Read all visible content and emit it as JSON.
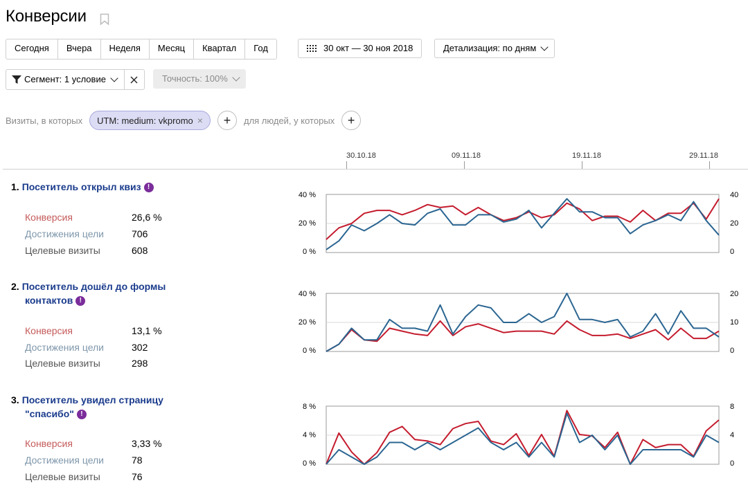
{
  "page": {
    "title": "Конверсии"
  },
  "periods": [
    "Сегодня",
    "Вчера",
    "Неделя",
    "Месяц",
    "Квартал",
    "Год"
  ],
  "date_range": "30 окт — 30 ноя 2018",
  "detail": "Детализация: по дням",
  "segment": "Сегмент: 1 условие",
  "accuracy": "Точность: 100%",
  "filter": {
    "visits_label": "Визиты, в которых",
    "pill": "UTM: medium: vkpromo",
    "people_label": "для людей, у которых"
  },
  "dates": [
    "30.10.18",
    "09.11.18",
    "19.11.18",
    "29.11.18"
  ],
  "colors": {
    "conversion": "#c41b2d",
    "achievements": "#2a6591",
    "accent": "#7b2d9b"
  },
  "metric_labels": {
    "conv": "Конверсия",
    "ach": "Достижения цели",
    "vis": "Целевые визиты"
  },
  "goals": [
    {
      "num": "1.",
      "title_lines": [
        "Посетитель открыл квиз"
      ],
      "conversion": "26,6 %",
      "achievements": "706",
      "visits": "608",
      "left_ticks": [
        "40 %",
        "20 %",
        "0 %"
      ],
      "right_ticks": [
        "40",
        "20",
        "0"
      ]
    },
    {
      "num": "2.",
      "title_lines": [
        "Посетитель дошёл до формы",
        "контактов"
      ],
      "conversion": "13,1 %",
      "achievements": "302",
      "visits": "298",
      "left_ticks": [
        "40 %",
        "20 %",
        "0 %"
      ],
      "right_ticks": [
        "20",
        "10",
        "0"
      ]
    },
    {
      "num": "3.",
      "title_lines": [
        "Посетитель увидел страницу",
        "\"спасибо\""
      ],
      "conversion": "3,33 %",
      "achievements": "78",
      "visits": "76",
      "left_ticks": [
        "8 %",
        "4 %",
        "0 %"
      ],
      "right_ticks": [
        "8",
        "4",
        "0"
      ]
    }
  ],
  "chart_data": [
    {
      "type": "line",
      "x": [
        "30.10",
        "31.10",
        "01.11",
        "02.11",
        "03.11",
        "04.11",
        "05.11",
        "06.11",
        "07.11",
        "08.11",
        "09.11",
        "10.11",
        "11.11",
        "12.11",
        "13.11",
        "14.11",
        "15.11",
        "16.11",
        "17.11",
        "18.11",
        "19.11",
        "20.11",
        "21.11",
        "22.11",
        "23.11",
        "24.11",
        "25.11",
        "26.11",
        "27.11",
        "28.11",
        "29.11",
        "30.11"
      ],
      "ylim_left": [
        0,
        40
      ],
      "ylim_right": [
        0,
        40
      ],
      "series": [
        {
          "color": "#c41b2d",
          "axis": "left",
          "values": [
            9,
            17,
            20,
            27,
            29,
            29,
            26,
            29,
            33,
            31,
            32,
            26,
            31,
            26,
            22,
            24,
            28,
            24,
            26,
            34,
            30,
            22,
            25,
            25,
            21,
            29,
            22,
            27,
            27,
            34,
            23,
            37
          ]
        },
        {
          "color": "#2a6591",
          "axis": "right",
          "values": [
            2,
            8,
            19,
            15,
            20,
            26,
            20,
            19,
            27,
            30,
            19,
            19,
            26,
            26,
            21,
            23,
            29,
            17,
            27,
            37,
            28,
            28,
            24,
            24,
            13,
            19,
            22,
            26,
            22,
            35,
            22,
            12
          ]
        }
      ]
    },
    {
      "type": "line",
      "x": [
        "30.10",
        "31.10",
        "01.11",
        "02.11",
        "03.11",
        "04.11",
        "05.11",
        "06.11",
        "07.11",
        "08.11",
        "09.11",
        "10.11",
        "11.11",
        "12.11",
        "13.11",
        "14.11",
        "15.11",
        "16.11",
        "17.11",
        "18.11",
        "19.11",
        "20.11",
        "21.11",
        "22.11",
        "23.11",
        "24.11",
        "25.11",
        "26.11",
        "27.11",
        "28.11",
        "29.11",
        "30.11"
      ],
      "ylim_left": [
        0,
        40
      ],
      "ylim_right": [
        0,
        20
      ],
      "series": [
        {
          "color": "#c41b2d",
          "axis": "left",
          "values": [
            0,
            5,
            15,
            8,
            7,
            16,
            14,
            12,
            11,
            21,
            11,
            17,
            19,
            16,
            13,
            14,
            14,
            14,
            12,
            21,
            15,
            11,
            11,
            12,
            9,
            12,
            15,
            8,
            16,
            9,
            9,
            14
          ]
        },
        {
          "color": "#2a6591",
          "axis": "right",
          "values": [
            0,
            2.5,
            8,
            4,
            4,
            11,
            8,
            8,
            7,
            16,
            6,
            12,
            16,
            15,
            10,
            10,
            13,
            10,
            12,
            20,
            11,
            11,
            10,
            11,
            5,
            7,
            13,
            6,
            14,
            8,
            8,
            5
          ]
        }
      ]
    },
    {
      "type": "line",
      "x": [
        "30.10",
        "31.10",
        "01.11",
        "02.11",
        "03.11",
        "04.11",
        "05.11",
        "06.11",
        "07.11",
        "08.11",
        "09.11",
        "10.11",
        "11.11",
        "12.11",
        "13.11",
        "14.11",
        "15.11",
        "16.11",
        "17.11",
        "18.11",
        "19.11",
        "20.11",
        "21.11",
        "22.11",
        "23.11",
        "24.11",
        "25.11",
        "26.11",
        "27.11",
        "28.11",
        "29.11",
        "30.11"
      ],
      "ylim_left": [
        0,
        8
      ],
      "ylim_right": [
        0,
        8
      ],
      "series": [
        {
          "color": "#c41b2d",
          "axis": "left",
          "values": [
            0,
            4.3,
            1.7,
            0,
            1.6,
            4.4,
            5.2,
            3.4,
            3.2,
            2.7,
            4.9,
            5.6,
            5.9,
            3.2,
            2.7,
            4.2,
            1.2,
            4.1,
            1.1,
            7.4,
            4.1,
            3.9,
            2.3,
            4.4,
            0,
            3.4,
            2.3,
            2.7,
            2.7,
            1.1,
            4.6,
            6.1
          ]
        },
        {
          "color": "#2a6591",
          "axis": "right",
          "values": [
            0,
            2,
            1,
            0,
            1,
            3,
            3,
            2,
            3,
            2,
            3,
            4,
            5,
            3,
            2,
            3,
            1,
            3,
            1,
            7,
            3,
            4,
            2,
            4,
            0,
            2,
            2,
            2,
            2,
            1,
            4,
            3
          ]
        }
      ]
    }
  ]
}
